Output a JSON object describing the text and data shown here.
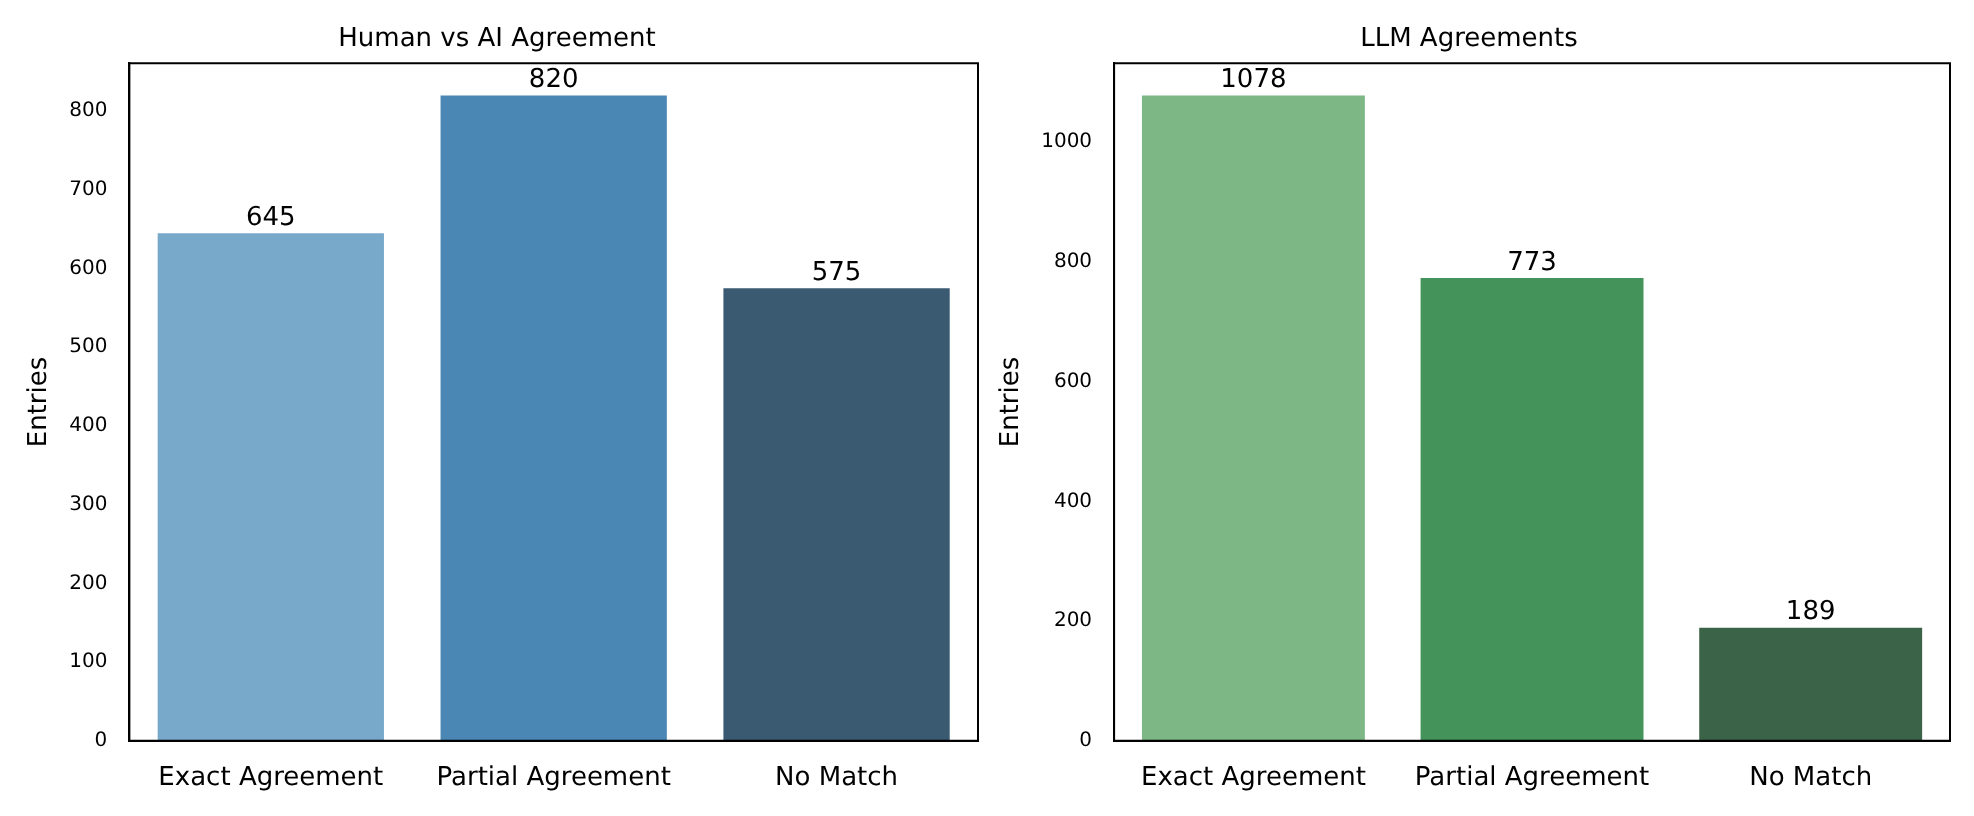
{
  "chart_data": [
    {
      "type": "bar",
      "title": "Human vs AI Agreement",
      "ylabel": "Entries",
      "categories": [
        "Exact Agreement",
        "Partial Agreement",
        "No Match"
      ],
      "values": [
        645,
        820,
        575
      ],
      "colors": [
        "#79a9ca",
        "#4a87b5",
        "#3a5a72"
      ],
      "ylim": [
        0,
        861
      ],
      "yticks": [
        0,
        100,
        200,
        300,
        400,
        500,
        600,
        700,
        800
      ],
      "data_labels": true
    },
    {
      "type": "bar",
      "title": "LLM Agreements",
      "ylabel": "Entries",
      "categories": [
        "Exact Agreement",
        "Partial Agreement",
        "No Match"
      ],
      "values": [
        1078,
        773,
        189
      ],
      "colors": [
        "#7db785",
        "#44935a",
        "#3a6347"
      ],
      "ylim": [
        0,
        1132
      ],
      "yticks": [
        0,
        200,
        400,
        600,
        800,
        1000
      ],
      "data_labels": true
    }
  ]
}
